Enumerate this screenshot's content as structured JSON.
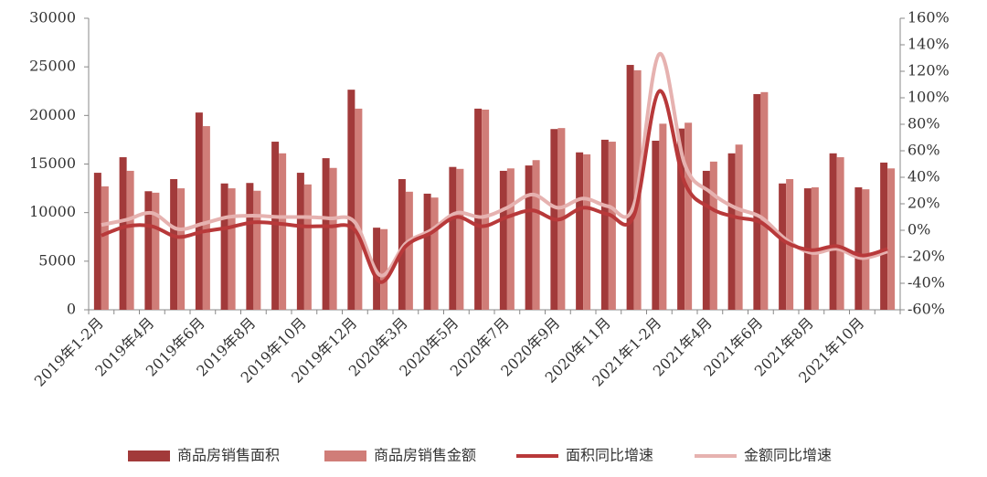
{
  "chart_data": {
    "type": "bar",
    "categories": [
      "2019年1-2月",
      null,
      "2019年4月",
      null,
      "2019年6月",
      null,
      "2019年8月",
      null,
      "2019年10月",
      null,
      "2019年12月",
      null,
      "2020年3月",
      null,
      "2020年5月",
      null,
      "2020年7月",
      null,
      "2020年9月",
      null,
      "2020年11月",
      null,
      "2021年1-2月",
      null,
      "2021年4月",
      null,
      "2021年6月",
      null,
      "2021年8月",
      null,
      "2021年10月",
      null
    ],
    "series": [
      {
        "name": "商品房销售面积",
        "type": "bar",
        "color": "#a23a3a",
        "values": [
          14100,
          15700,
          12200,
          13450,
          20300,
          13000,
          13050,
          17300,
          14100,
          15600,
          22650,
          8450,
          13450,
          11950,
          14700,
          20700,
          14300,
          14850,
          18600,
          16200,
          17500,
          25200,
          17400,
          18650,
          14300,
          16100,
          22200,
          13000,
          12500,
          16100,
          12600,
          15150
        ]
      },
      {
        "name": "商品房销售金额",
        "type": "bar",
        "color": "#d07d78",
        "values": [
          12700,
          14300,
          12050,
          12500,
          18900,
          12500,
          12250,
          16100,
          12900,
          14600,
          20700,
          8300,
          12150,
          11550,
          14500,
          20600,
          14550,
          15400,
          18700,
          16000,
          17300,
          24650,
          19150,
          19250,
          15250,
          17000,
          22400,
          13450,
          12600,
          15700,
          12400,
          14550
        ]
      },
      {
        "name": "面积同比增速",
        "type": "line",
        "axis": "y2",
        "color": "#b8393a",
        "values": [
          -4,
          3,
          3,
          -5,
          -1,
          2,
          6,
          5,
          3,
          3,
          0,
          -39,
          -12,
          -2,
          10,
          3,
          10,
          15,
          8,
          17,
          12,
          11,
          105,
          36,
          17,
          10,
          6,
          -9,
          -15,
          -12,
          -19,
          -14
        ]
      },
      {
        "name": "金额同比增速",
        "type": "line",
        "axis": "y2",
        "color": "#e6b2b0",
        "values": [
          4,
          8,
          13,
          1,
          5,
          10,
          11,
          10,
          10,
          9,
          6,
          -34,
          -10,
          0,
          13,
          10,
          17,
          27,
          17,
          24,
          18,
          19,
          133,
          50,
          29,
          17,
          10,
          -7,
          -17,
          -14,
          -21,
          -16
        ]
      }
    ],
    "ylim": [
      0,
      30000
    ],
    "yticks": [
      0,
      5000,
      10000,
      15000,
      20000,
      25000,
      30000
    ],
    "y2lim": [
      -60,
      160
    ],
    "y2ticks": [
      {
        "value": -60,
        "label": "-60%"
      },
      {
        "value": -40,
        "label": "-40%"
      },
      {
        "value": -20,
        "label": "-20%"
      },
      {
        "value": 0,
        "label": "0%"
      },
      {
        "value": 20,
        "label": "20%"
      },
      {
        "value": 40,
        "label": "40%"
      },
      {
        "value": 60,
        "label": "60%"
      },
      {
        "value": 80,
        "label": "80%"
      },
      {
        "value": 100,
        "label": "100%"
      },
      {
        "value": 120,
        "label": "120%"
      },
      {
        "value": 140,
        "label": "140%"
      },
      {
        "value": 160,
        "label": "160%"
      }
    ],
    "legend": "bottom"
  }
}
